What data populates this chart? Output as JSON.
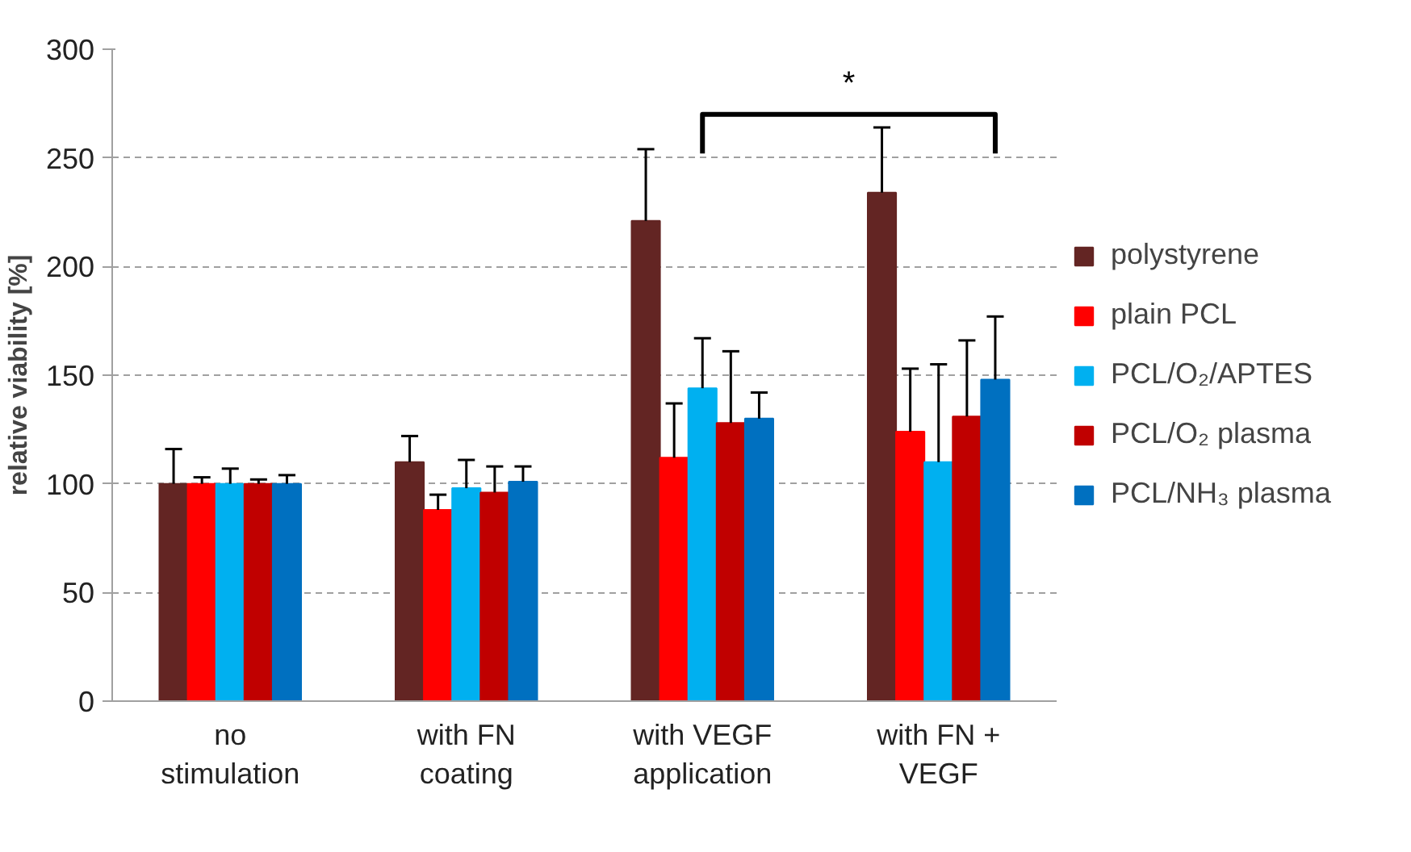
{
  "chart_data": {
    "type": "bar",
    "ylabel": "relative viability [%]",
    "categories": [
      "no\nstimulation",
      "with FN\ncoating",
      "with VEGF\napplication",
      "with FN +\nVEGF"
    ],
    "ylim": [
      0,
      300
    ],
    "yticks": [
      0,
      50,
      100,
      150,
      200,
      250,
      300
    ],
    "grid": "y",
    "legend": "right",
    "series": [
      {
        "name": "polystyrene",
        "color": "#632523",
        "values": [
          100,
          110,
          221,
          234
        ],
        "errors": [
          [
            100,
            116
          ],
          [
            110,
            122
          ],
          [
            221,
            254
          ],
          [
            234,
            264
          ]
        ]
      },
      {
        "name": "plain PCL",
        "color": "#ff0000",
        "values": [
          100,
          88,
          112,
          124
        ],
        "errors": [
          [
            100,
            103
          ],
          [
            88,
            95
          ],
          [
            112,
            137
          ],
          [
            124,
            153
          ]
        ]
      },
      {
        "name": "PCL/O₂/APTES",
        "color": "#00b0f0",
        "values": [
          100,
          98,
          144,
          110
        ],
        "errors": [
          [
            100,
            107
          ],
          [
            98,
            111
          ],
          [
            144,
            167
          ],
          [
            110,
            155
          ]
        ]
      },
      {
        "name": "PCL/O₂ plasma",
        "color": "#c00000",
        "values": [
          100,
          96,
          128,
          131
        ],
        "errors": [
          [
            100,
            102
          ],
          [
            96,
            108
          ],
          [
            128,
            161
          ],
          [
            131,
            166
          ]
        ]
      },
      {
        "name": "PCL/NH₃ plasma",
        "color": "#0070c0",
        "values": [
          100,
          101,
          130,
          148
        ],
        "errors": [
          [
            100,
            104
          ],
          [
            101,
            108
          ],
          [
            130,
            142
          ],
          [
            148,
            177
          ]
        ]
      }
    ],
    "annotations": [
      "*"
    ]
  }
}
